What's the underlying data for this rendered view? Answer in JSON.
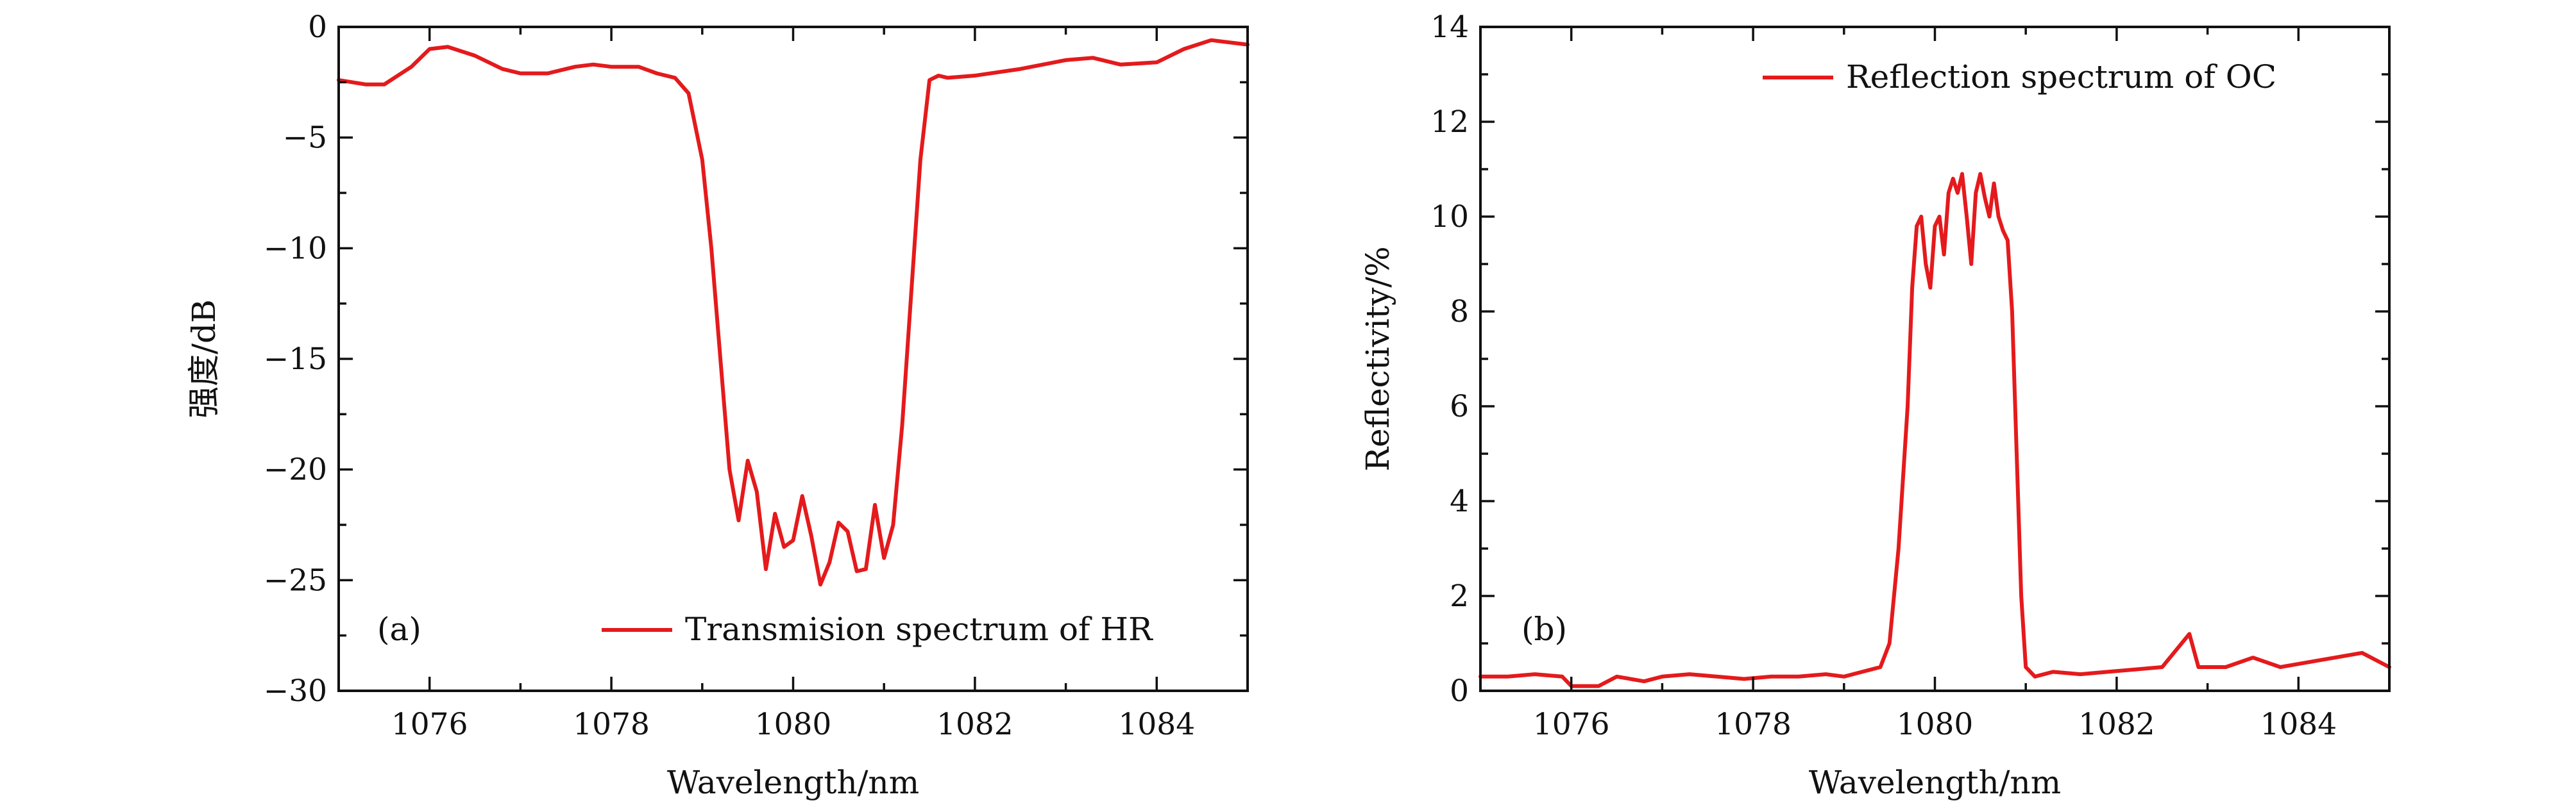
{
  "chart_data": [
    {
      "id": "a",
      "type": "line",
      "panel_label": "(a)",
      "xlabel": "Wavelength/nm",
      "ylabel": "强度/dB",
      "xlim": [
        1075,
        1085
      ],
      "ylim": [
        -30,
        0
      ],
      "xticks": [
        1076,
        1078,
        1080,
        1082,
        1084
      ],
      "xtick_labels": [
        "1076",
        "1078",
        "1080",
        "1082",
        "1084"
      ],
      "yticks": [
        0,
        -5,
        -10,
        -15,
        -20,
        -25,
        -30
      ],
      "ytick_labels": [
        "0",
        "−5",
        "−10",
        "−15",
        "−20",
        "−25",
        "−30"
      ],
      "legend_position": "bottom-right",
      "grid": false,
      "line_color": "#e41a1c",
      "series": [
        {
          "name": "Transmision spectrum of HR",
          "x": [
            1075.0,
            1075.3,
            1075.5,
            1075.8,
            1076.0,
            1076.2,
            1076.5,
            1076.8,
            1077.0,
            1077.3,
            1077.6,
            1077.8,
            1078.0,
            1078.3,
            1078.5,
            1078.7,
            1078.85,
            1079.0,
            1079.1,
            1079.2,
            1079.3,
            1079.4,
            1079.5,
            1079.6,
            1079.7,
            1079.8,
            1079.9,
            1080.0,
            1080.1,
            1080.2,
            1080.3,
            1080.4,
            1080.5,
            1080.6,
            1080.7,
            1080.8,
            1080.9,
            1081.0,
            1081.1,
            1081.2,
            1081.3,
            1081.4,
            1081.5,
            1081.6,
            1081.7,
            1082.0,
            1082.5,
            1083.0,
            1083.3,
            1083.6,
            1084.0,
            1084.3,
            1084.6,
            1085.0
          ],
          "y": [
            -2.4,
            -2.6,
            -2.6,
            -1.8,
            -1.0,
            -0.9,
            -1.3,
            -1.9,
            -2.1,
            -2.1,
            -1.8,
            -1.7,
            -1.8,
            -1.8,
            -2.1,
            -2.3,
            -3.0,
            -6.0,
            -10.0,
            -15.0,
            -20.0,
            -22.3,
            -19.6,
            -21.0,
            -24.5,
            -22.0,
            -23.5,
            -23.2,
            -21.2,
            -23.0,
            -25.2,
            -24.2,
            -22.4,
            -22.8,
            -24.6,
            -24.5,
            -21.6,
            -24.0,
            -22.5,
            -18.0,
            -12.0,
            -6.0,
            -2.4,
            -2.2,
            -2.3,
            -2.2,
            -1.9,
            -1.5,
            -1.4,
            -1.7,
            -1.6,
            -1.0,
            -0.6,
            -0.8
          ]
        }
      ]
    },
    {
      "id": "b",
      "type": "line",
      "panel_label": "(b)",
      "xlabel": "Wavelength/nm",
      "ylabel": "Reflectivity/%",
      "xlim": [
        1075,
        1085
      ],
      "ylim": [
        0,
        14
      ],
      "xticks": [
        1076,
        1078,
        1080,
        1082,
        1084
      ],
      "xtick_labels": [
        "1076",
        "1078",
        "1080",
        "1082",
        "1084"
      ],
      "yticks": [
        0,
        2,
        4,
        6,
        8,
        10,
        12,
        14
      ],
      "ytick_labels": [
        "0",
        "2",
        "4",
        "6",
        "8",
        "10",
        "12",
        "14"
      ],
      "legend_position": "top-right",
      "grid": false,
      "line_color": "#e41a1c",
      "series": [
        {
          "name": "Reflection spectrum of OC",
          "x": [
            1075.0,
            1075.3,
            1075.6,
            1075.9,
            1076.0,
            1076.3,
            1076.5,
            1076.8,
            1077.0,
            1077.3,
            1077.6,
            1077.9,
            1078.2,
            1078.5,
            1078.8,
            1079.0,
            1079.2,
            1079.4,
            1079.5,
            1079.6,
            1079.7,
            1079.75,
            1079.8,
            1079.85,
            1079.9,
            1079.95,
            1080.0,
            1080.05,
            1080.1,
            1080.15,
            1080.2,
            1080.25,
            1080.3,
            1080.35,
            1080.4,
            1080.45,
            1080.5,
            1080.55,
            1080.6,
            1080.65,
            1080.7,
            1080.75,
            1080.8,
            1080.85,
            1080.9,
            1080.95,
            1081.0,
            1081.1,
            1081.3,
            1081.6,
            1081.9,
            1082.2,
            1082.5,
            1082.8,
            1082.9,
            1083.2,
            1083.5,
            1083.8,
            1084.1,
            1084.4,
            1084.7,
            1085.0
          ],
          "y": [
            0.3,
            0.3,
            0.35,
            0.3,
            0.1,
            0.1,
            0.3,
            0.2,
            0.3,
            0.35,
            0.3,
            0.25,
            0.3,
            0.3,
            0.35,
            0.3,
            0.4,
            0.5,
            1.0,
            3.0,
            6.0,
            8.5,
            9.8,
            10.0,
            9.0,
            8.5,
            9.8,
            10.0,
            9.2,
            10.5,
            10.8,
            10.5,
            10.9,
            10.0,
            9.0,
            10.5,
            10.9,
            10.4,
            10.0,
            10.7,
            10.0,
            9.7,
            9.5,
            8.0,
            5.0,
            2.0,
            0.5,
            0.3,
            0.4,
            0.35,
            0.4,
            0.45,
            0.5,
            1.2,
            0.5,
            0.5,
            0.7,
            0.5,
            0.6,
            0.7,
            0.8,
            0.5
          ]
        }
      ]
    }
  ]
}
